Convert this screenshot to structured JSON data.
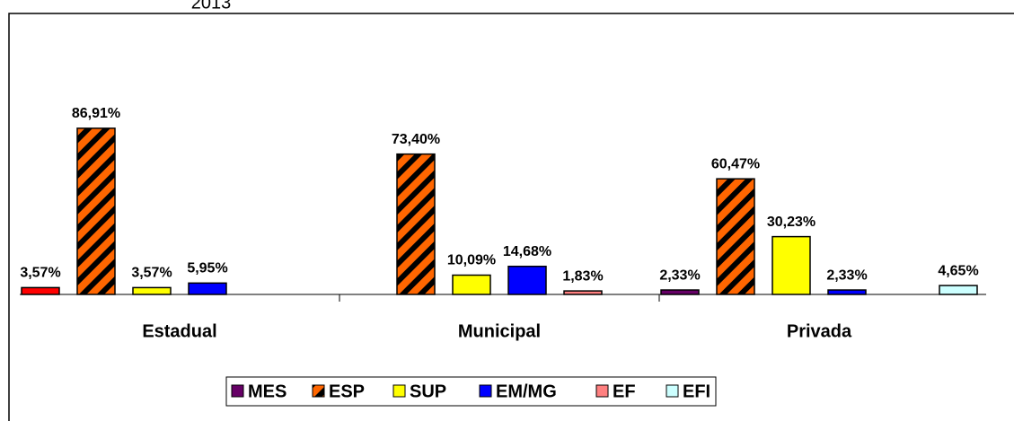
{
  "chart_data": {
    "type": "bar",
    "title": "2013",
    "categories": [
      "Estadual",
      "Municipal",
      "Privada"
    ],
    "ylim": [
      0,
      100
    ],
    "series": [
      {
        "name": "MES",
        "color": "#660066",
        "point_colors": [
          "#ff0000",
          "#660066",
          "#660066"
        ],
        "values": [
          3.57,
          null,
          2.33
        ],
        "value_labels": [
          "3,57%",
          null,
          "2,33%"
        ]
      },
      {
        "name": "ESP",
        "color": "#ff6600",
        "hatch": true,
        "values": [
          86.91,
          73.4,
          60.47
        ],
        "value_labels": [
          "86,91%",
          "73,40%",
          "60,47%"
        ]
      },
      {
        "name": "SUP",
        "color": "#ffff00",
        "values": [
          3.57,
          10.09,
          30.23
        ],
        "value_labels": [
          "3,57%",
          "10,09%",
          "30,23%"
        ]
      },
      {
        "name": "EM/MG",
        "color": "#0000ff",
        "values": [
          5.95,
          14.68,
          2.33
        ],
        "value_labels": [
          "5,95%",
          "14,68%",
          "2,33%"
        ]
      },
      {
        "name": "EF",
        "color": "#ff8080",
        "values": [
          null,
          1.83,
          null
        ],
        "value_labels": [
          null,
          "1,83%",
          null
        ]
      },
      {
        "name": "EFI",
        "color": "#ccffff",
        "values": [
          null,
          null,
          4.65
        ],
        "value_labels": [
          null,
          null,
          "4,65%"
        ]
      }
    ],
    "legend": "bottom"
  }
}
